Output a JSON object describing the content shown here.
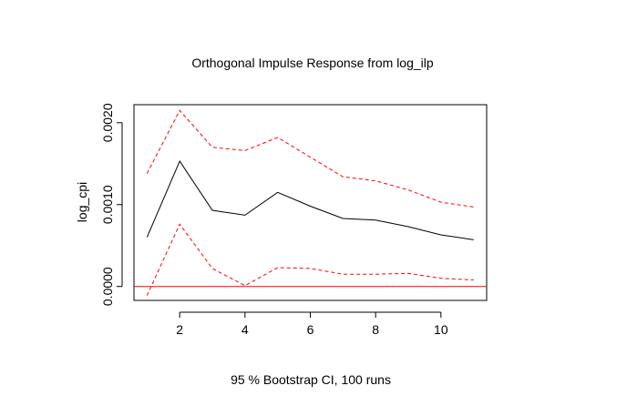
{
  "chart_data": {
    "type": "line",
    "title": "Orthogonal Impulse Response from log_ilp",
    "xlabel": "95 % Bootstrap CI,  100 runs",
    "ylabel": "log_cpi",
    "x": [
      1,
      2,
      3,
      4,
      5,
      6,
      7,
      8,
      9,
      10,
      11
    ],
    "xlim": [
      0.6,
      11.4
    ],
    "ylim": [
      -0.00017,
      0.00222
    ],
    "x_ticks": [
      2,
      4,
      6,
      8,
      10
    ],
    "x_tick_labels": [
      "2",
      "4",
      "6",
      "8",
      "10"
    ],
    "y_ticks": [
      0,
      0.001,
      0.002
    ],
    "y_tick_labels": [
      "0.0000",
      "0.0010",
      "0.0020"
    ],
    "reference_line": {
      "y": 0,
      "color": "#ff0000"
    },
    "series": [
      {
        "role": "response",
        "color": "#000000",
        "dash": false,
        "values": [
          0.0006,
          0.00153,
          0.00093,
          0.00087,
          0.00115,
          0.00098,
          0.00083,
          0.00081,
          0.00073,
          0.00063,
          0.00057
        ]
      },
      {
        "role": "upper",
        "color": "#ff0000",
        "dash": true,
        "values": [
          0.00138,
          0.00215,
          0.0017,
          0.00166,
          0.00182,
          0.00158,
          0.00134,
          0.00129,
          0.00118,
          0.00103,
          0.00097
        ]
      },
      {
        "role": "lower",
        "color": "#ff0000",
        "dash": true,
        "values": [
          -0.00011,
          0.00076,
          0.00022,
          1e-05,
          0.00023,
          0.00022,
          0.00015,
          0.00015,
          0.00016,
          0.0001,
          8e-05
        ]
      }
    ]
  }
}
